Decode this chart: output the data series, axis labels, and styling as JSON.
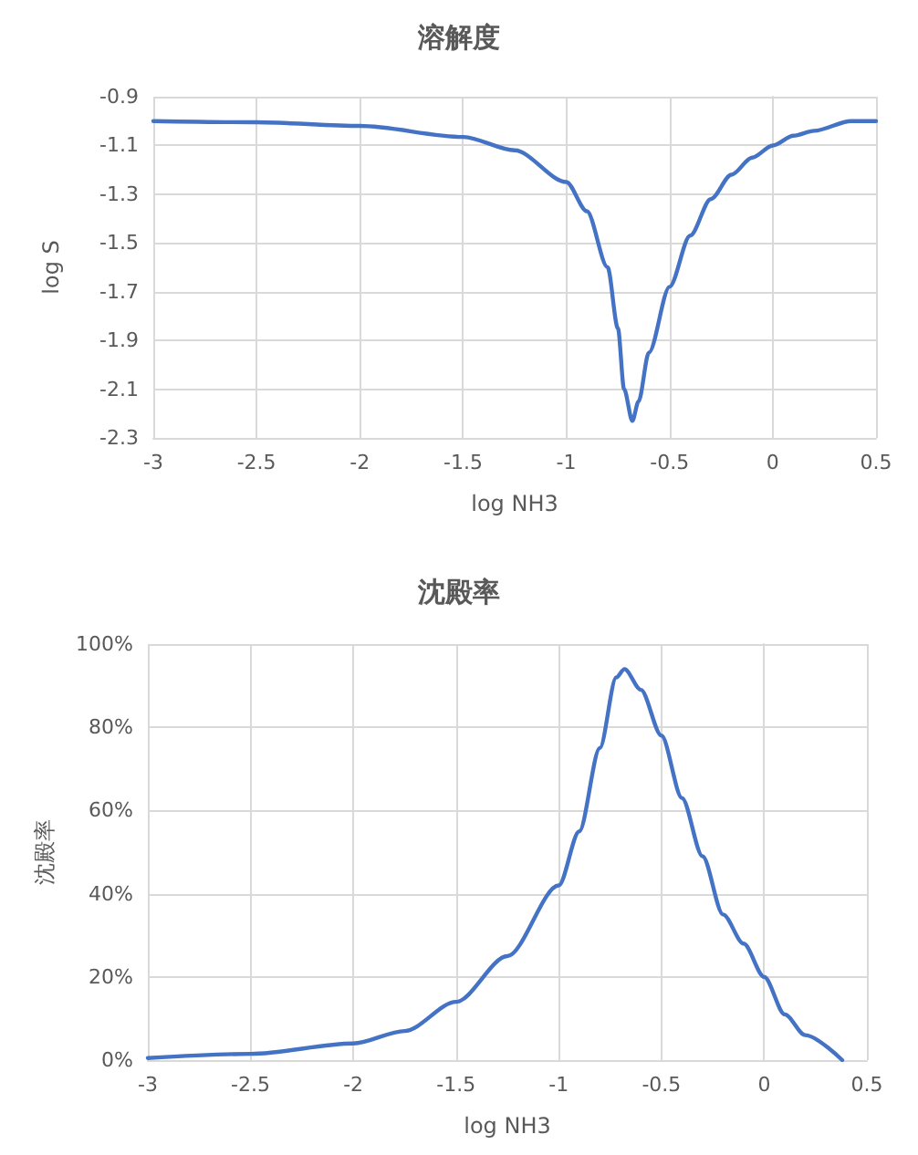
{
  "chart_data": [
    {
      "type": "line",
      "title": "溶解度",
      "xlabel": "log NH3",
      "ylabel": "log S",
      "grid": true,
      "marker": "none",
      "line_style": "solid",
      "xlim": [
        -3,
        0.5
      ],
      "xticks": [
        -3,
        -2.5,
        -2,
        -1.5,
        -1,
        -0.5,
        0,
        0.5
      ],
      "ylim": [
        -2.3,
        -0.9
      ],
      "yticks": [
        -2.3,
        -2.1,
        -1.9,
        -1.7,
        -1.5,
        -1.3,
        -1.1,
        -0.9
      ],
      "series": [
        {
          "color": "#4472c4",
          "x": [
            -3,
            -2.5,
            -2,
            -1.5,
            -1.25,
            -1,
            -0.9,
            -0.8,
            -0.75,
            -0.72,
            -0.68,
            -0.65,
            -0.6,
            -0.5,
            -0.4,
            -0.3,
            -0.2,
            -0.1,
            0,
            0.1,
            0.2,
            0.38,
            0.5
          ],
          "values": [
            -1.0,
            -1.005,
            -1.02,
            -1.065,
            -1.12,
            -1.25,
            -1.37,
            -1.6,
            -1.85,
            -2.1,
            -2.23,
            -2.15,
            -1.95,
            -1.68,
            -1.47,
            -1.32,
            -1.22,
            -1.15,
            -1.1,
            -1.06,
            -1.04,
            -1.0,
            -1.0
          ]
        }
      ]
    },
    {
      "type": "line",
      "title": "沈殿率",
      "xlabel": "log NH3",
      "ylabel": "沈殿率",
      "grid": true,
      "marker": "none",
      "line_style": "solid",
      "xlim": [
        -3,
        0.5
      ],
      "xticks": [
        -3,
        -2.5,
        -2,
        -1.5,
        -1,
        -0.5,
        0,
        0.5
      ],
      "ylim": [
        0,
        100
      ],
      "yticks": [
        {
          "value": 0,
          "label": "0%"
        },
        {
          "value": 20,
          "label": "20%"
        },
        {
          "value": 40,
          "label": "40%"
        },
        {
          "value": 60,
          "label": "60%"
        },
        {
          "value": 80,
          "label": "80%"
        },
        {
          "value": 100,
          "label": "100%"
        }
      ],
      "series": [
        {
          "color": "#4472c4",
          "x": [
            -3,
            -2.5,
            -2,
            -1.75,
            -1.5,
            -1.25,
            -1,
            -0.9,
            -0.8,
            -0.72,
            -0.68,
            -0.6,
            -0.5,
            -0.4,
            -0.3,
            -0.2,
            -0.1,
            0,
            0.1,
            0.2,
            0.38
          ],
          "values": [
            0.5,
            1.5,
            4,
            7,
            14,
            25,
            42,
            55,
            75,
            92,
            94,
            89,
            78,
            63,
            49,
            35,
            28,
            20,
            11,
            6,
            0
          ]
        }
      ]
    }
  ]
}
